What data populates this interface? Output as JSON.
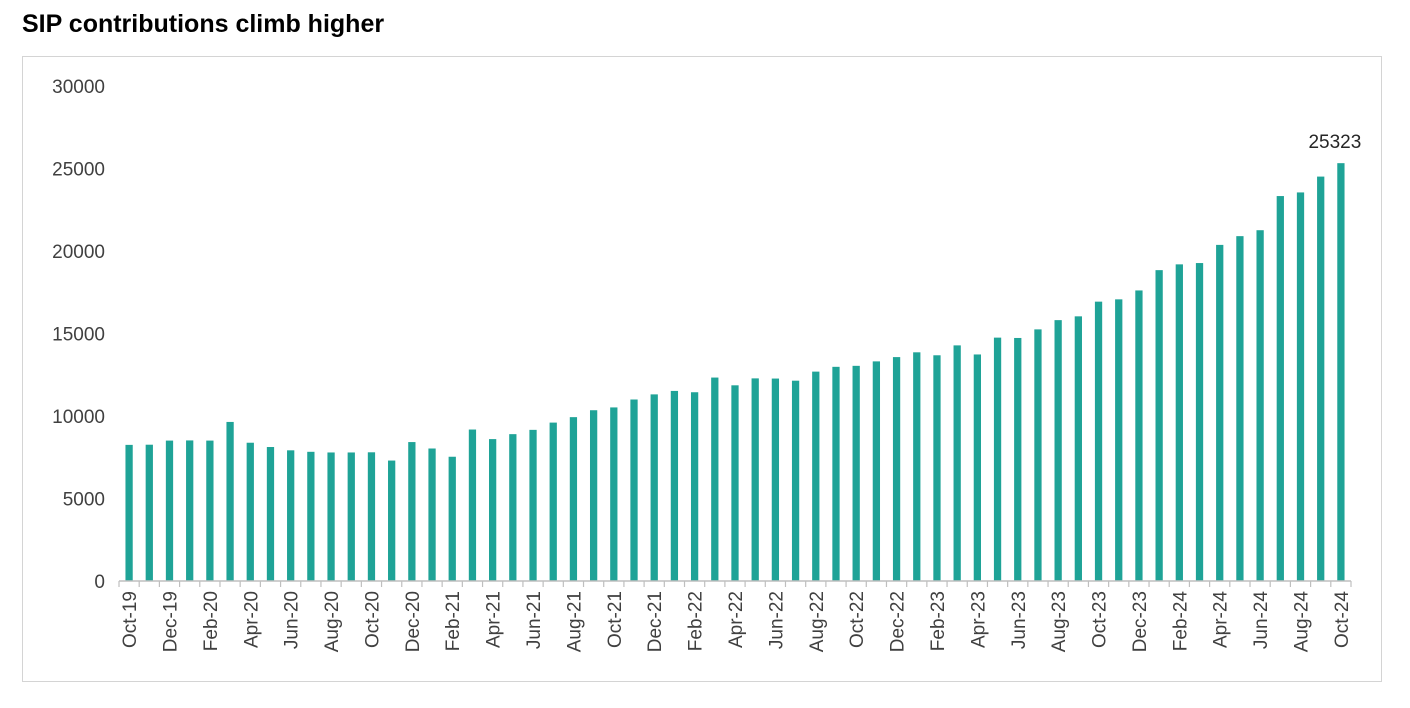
{
  "title": "SIP contributions climb higher",
  "colors": {
    "bar": "#1fa397",
    "axis": "#bfbfbf",
    "frame": "#d4d4d4",
    "text": "#404040"
  },
  "chart_data": {
    "type": "bar",
    "title": "SIP contributions climb higher",
    "xlabel": "",
    "ylabel": "",
    "ylim": [
      0,
      30000
    ],
    "yticks": [
      0,
      5000,
      10000,
      15000,
      20000,
      25000,
      30000
    ],
    "grid": false,
    "legend": "none",
    "categories": [
      "Oct-19",
      "Nov-19",
      "Dec-19",
      "Jan-20",
      "Feb-20",
      "Mar-20",
      "Apr-20",
      "May-20",
      "Jun-20",
      "Jul-20",
      "Aug-20",
      "Sep-20",
      "Oct-20",
      "Nov-20",
      "Dec-20",
      "Jan-21",
      "Feb-21",
      "Mar-21",
      "Apr-21",
      "May-21",
      "Jun-21",
      "Jul-21",
      "Aug-21",
      "Sep-21",
      "Oct-21",
      "Nov-21",
      "Dec-21",
      "Jan-22",
      "Feb-22",
      "Mar-22",
      "Apr-22",
      "May-22",
      "Jun-22",
      "Jul-22",
      "Aug-22",
      "Sep-22",
      "Oct-22",
      "Nov-22",
      "Dec-22",
      "Jan-23",
      "Feb-23",
      "Mar-23",
      "Apr-23",
      "May-23",
      "Jun-23",
      "Jul-23",
      "Aug-23",
      "Sep-23",
      "Oct-23",
      "Nov-23",
      "Dec-23",
      "Jan-24",
      "Feb-24",
      "Mar-24",
      "Apr-24",
      "May-24",
      "Jun-24",
      "Jul-24",
      "Aug-24",
      "Sep-24",
      "Oct-24"
    ],
    "shown_tick_labels": [
      "Oct-19",
      "Dec-19",
      "Feb-20",
      "Apr-20",
      "Jun-20",
      "Aug-20",
      "Oct-20",
      "Dec-20",
      "Feb-21",
      "Apr-21",
      "Jun-21",
      "Aug-21",
      "Oct-21",
      "Dec-21",
      "Feb-22",
      "Apr-22",
      "Jun-22",
      "Aug-22",
      "Oct-22",
      "Dec-22",
      "Feb-23",
      "Apr-23",
      "Jun-23",
      "Aug-23",
      "Oct-23",
      "Dec-23",
      "Feb-24",
      "Apr-24",
      "Jun-24",
      "Aug-24",
      "Oct-24"
    ],
    "values": [
      8250,
      8260,
      8510,
      8520,
      8510,
      9640,
      8380,
      8120,
      7920,
      7830,
      7790,
      7790,
      7800,
      7300,
      8420,
      8030,
      7530,
      9180,
      8600,
      8900,
      9160,
      9600,
      9930,
      10350,
      10520,
      11000,
      11310,
      11520,
      11440,
      12330,
      11860,
      12280,
      12270,
      12140,
      12690,
      12980,
      13040,
      13310,
      13570,
      13860,
      13680,
      14280,
      13730,
      14750,
      14730,
      15250,
      15810,
      16040,
      16930,
      17070,
      17610,
      18840,
      19190,
      19270,
      20370,
      20900,
      21260,
      23330,
      23550,
      24510,
      25323
    ],
    "data_labels": [
      {
        "category": "Oct-24",
        "text": "25323"
      }
    ]
  }
}
